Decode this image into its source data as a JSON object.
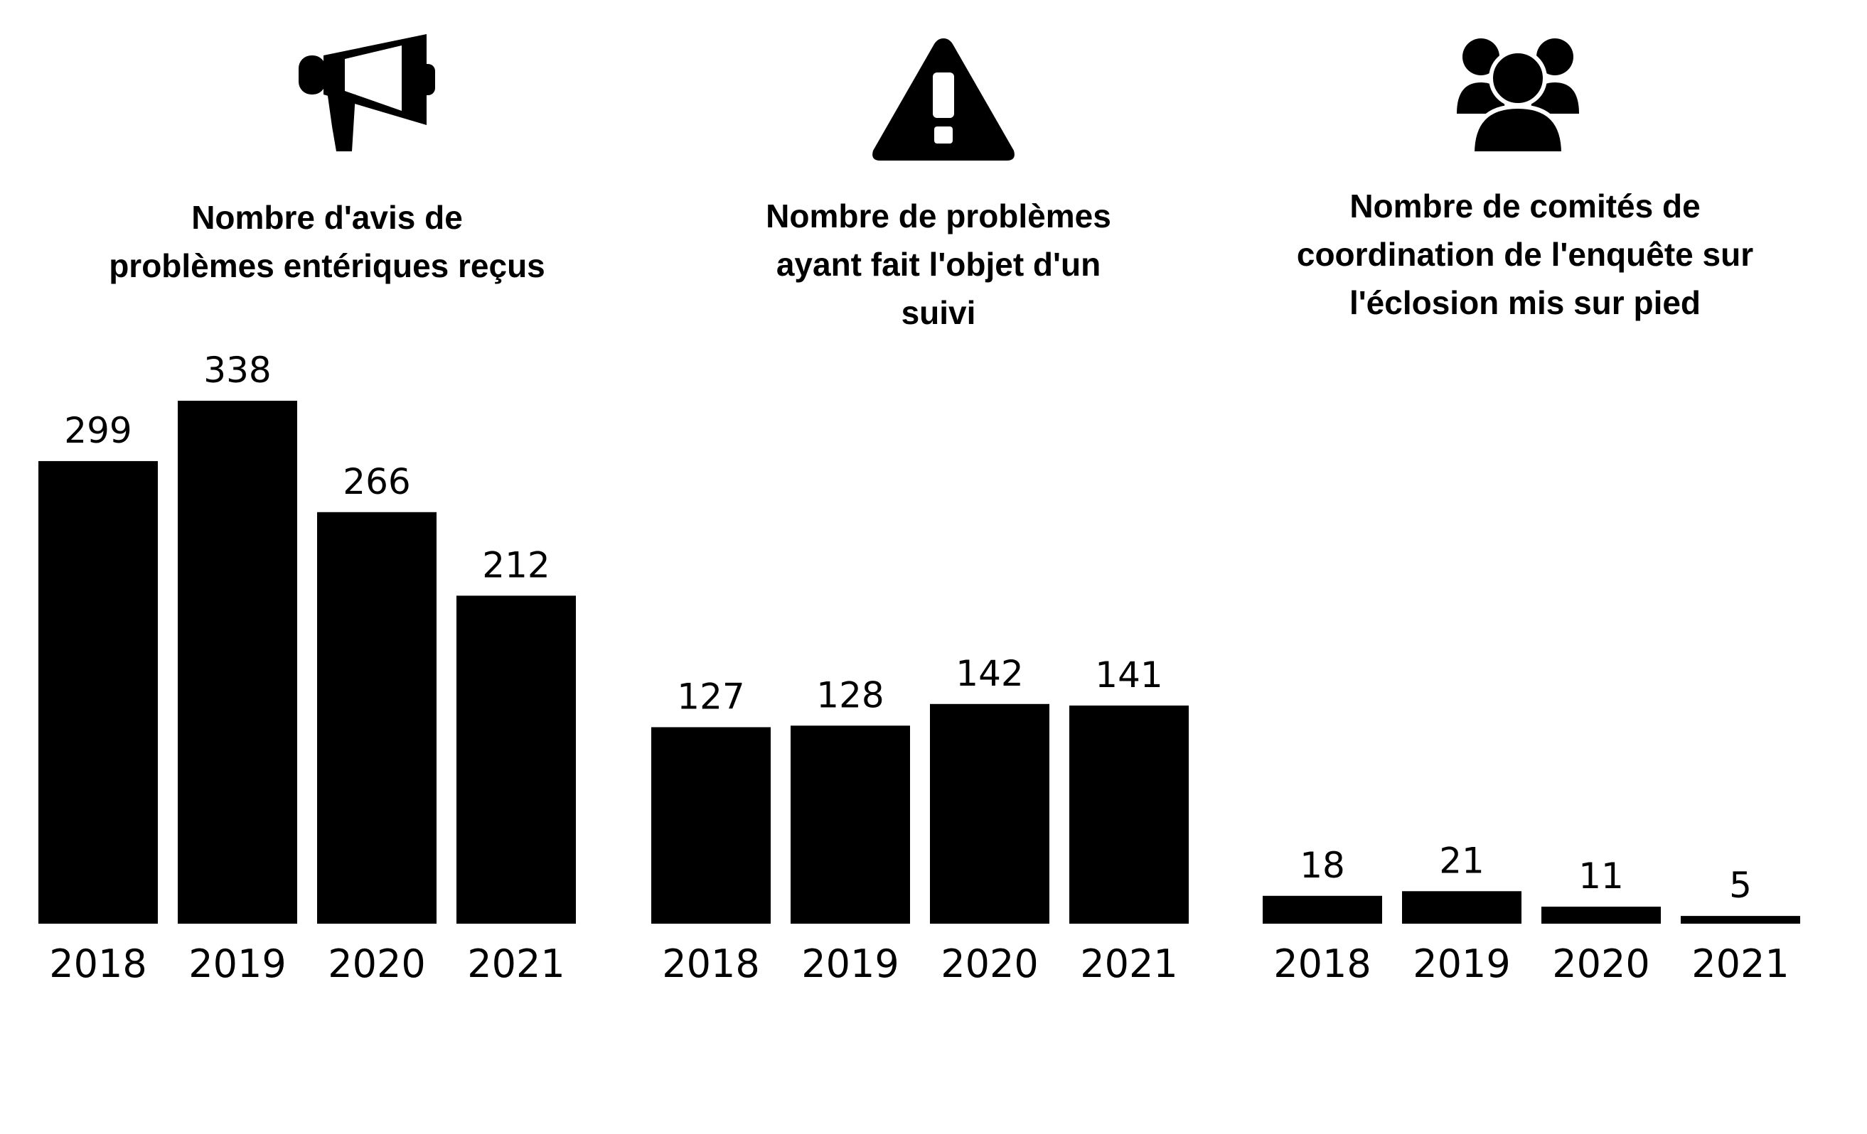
{
  "chart_data": [
    {
      "type": "bar",
      "icon": "megaphone-icon",
      "title_lines": [
        "Nombre d'avis de",
        "problèmes entériques reçus"
      ],
      "categories": [
        "2018",
        "2019",
        "2020",
        "2021"
      ],
      "values": [
        299,
        338,
        266,
        212
      ],
      "value_labels": [
        "299",
        "338",
        "266",
        "212"
      ],
      "ylim": [
        0,
        338
      ]
    },
    {
      "type": "bar",
      "icon": "warning-icon",
      "title_lines": [
        "Nombre de problèmes",
        "ayant fait l'objet d'un",
        "suivi"
      ],
      "categories": [
        "2018",
        "2019",
        "2020",
        "2021"
      ],
      "values": [
        127,
        128,
        142,
        141
      ],
      "value_labels": [
        "127",
        "128",
        "142",
        "141"
      ],
      "ylim": [
        0,
        338
      ]
    },
    {
      "type": "bar",
      "icon": "group-icon",
      "title_lines": [
        "Nombre de comités de",
        "coordination  de l'enquête sur",
        "l'éclosion mis sur pied"
      ],
      "categories": [
        "2018",
        "2019",
        "2020",
        "2021"
      ],
      "values": [
        18,
        21,
        11,
        5
      ],
      "value_labels": [
        "18",
        "21",
        "11",
        "5"
      ],
      "ylim": [
        0,
        338
      ]
    }
  ],
  "colors": {
    "bar": "#000000",
    "text": "#000000",
    "background": "#ffffff"
  }
}
